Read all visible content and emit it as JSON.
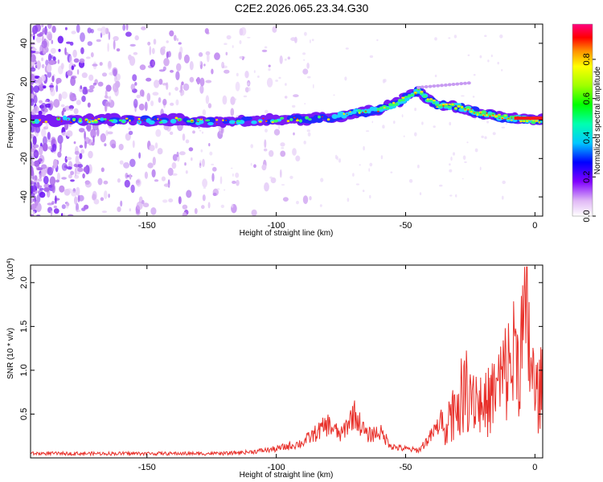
{
  "page": {
    "title": "C2E2.2026.065.23.34.G30"
  },
  "chart_data": [
    {
      "type": "heatmap",
      "xlabel": "Height of straight line (km)",
      "ylabel": "Frequency (Hz)",
      "xlim": [
        -195,
        3
      ],
      "ylim": [
        -50,
        50
      ],
      "xticks": [
        -150,
        -100,
        -50,
        0
      ],
      "yticks": [
        -40,
        -20,
        0,
        20,
        40
      ],
      "colorbar": {
        "label": "Normalized spectral amplitude",
        "range": [
          0,
          1
        ],
        "ticks": [
          "0.0",
          "0.2",
          "0.4",
          "0.6",
          "0.8"
        ]
      },
      "ridge": [
        {
          "x": -195,
          "f": 0
        },
        {
          "x": -170,
          "f": 0
        },
        {
          "x": -140,
          "f": 0
        },
        {
          "x": -125,
          "f": -1
        },
        {
          "x": -110,
          "f": 0
        },
        {
          "x": -95,
          "f": 0
        },
        {
          "x": -80,
          "f": 1
        },
        {
          "x": -70,
          "f": 4
        },
        {
          "x": -60,
          "f": 5
        },
        {
          "x": -52,
          "f": 10
        },
        {
          "x": -45,
          "f": 15
        },
        {
          "x": -38,
          "f": 8
        },
        {
          "x": -30,
          "f": 7
        },
        {
          "x": -20,
          "f": 3
        },
        {
          "x": -10,
          "f": 1
        },
        {
          "x": 0,
          "f": 0
        },
        {
          "x": 3,
          "f": 0
        }
      ]
    },
    {
      "type": "line",
      "xlabel": "Height of straight line (km)",
      "ylabel": "SNR (10 * v/v)",
      "multiplier": "(x10",
      "multiplier_exp": "4",
      "multiplier_close": ")",
      "xlim": [
        -195,
        3
      ],
      "ylim": [
        0,
        2.2
      ],
      "xticks": [
        -150,
        -100,
        -50,
        0
      ],
      "yticks": [
        "0.5",
        "1.0",
        "1.5",
        "2.0"
      ],
      "series_color": "#e8302a",
      "x": [
        -195,
        -180,
        -160,
        -140,
        -120,
        -110,
        -100,
        -90,
        -80,
        -75,
        -70,
        -65,
        -60,
        -55,
        -50,
        -45,
        -40,
        -35,
        -30,
        -25,
        -20,
        -15,
        -10,
        -5,
        -3,
        0,
        3
      ],
      "y": [
        0.03,
        0.04,
        0.05,
        0.04,
        0.06,
        0.08,
        0.12,
        0.2,
        0.45,
        0.3,
        0.6,
        0.3,
        0.35,
        0.15,
        0.12,
        0.1,
        0.3,
        0.55,
        0.9,
        1.2,
        0.8,
        1.1,
        1.5,
        1.9,
        2.15,
        1.0,
        1.15
      ]
    }
  ]
}
